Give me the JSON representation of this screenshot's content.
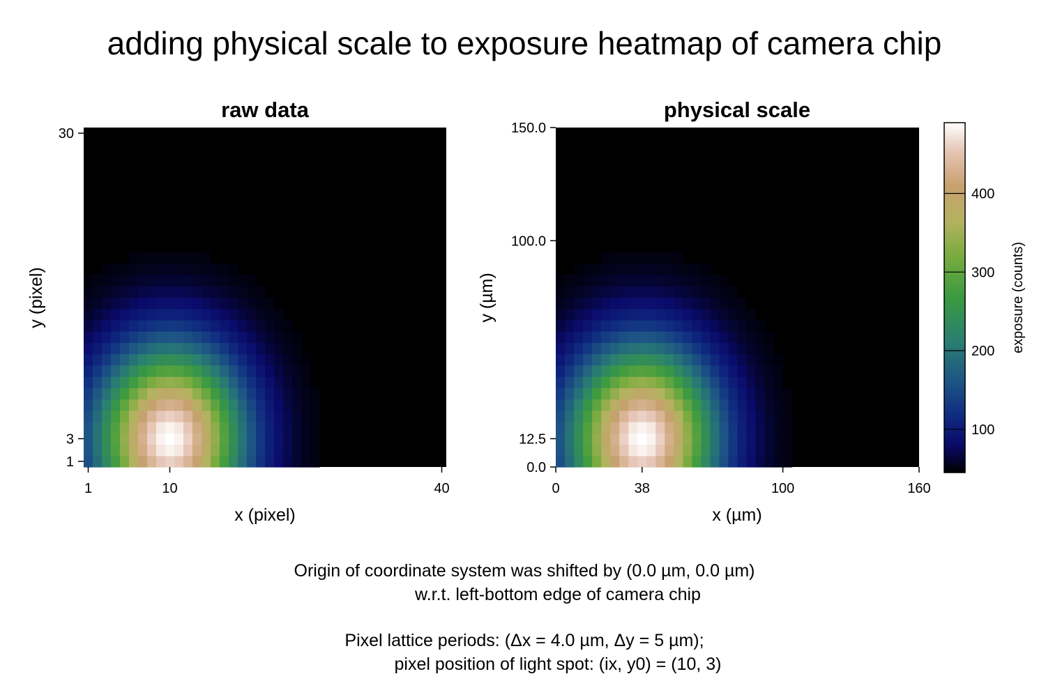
{
  "chart_data": {
    "type": "heatmap",
    "title": "adding physical scale to exposure heatmap of camera chip",
    "colormap": "gist_earth",
    "colorbar": {
      "label": "exposure (counts)",
      "range": [
        45,
        490
      ],
      "ticks": [
        "100",
        "200",
        "300",
        "400"
      ],
      "tick_values": [
        100,
        200,
        300,
        400
      ]
    },
    "exposure_model": {
      "description": "Gaussian light spot on 40 x 30 pixel chip",
      "peak_counts": 490,
      "background_counts": 45,
      "peak_pixel": [
        10,
        3
      ],
      "sigma_pixels": 5.5,
      "grid_size": [
        40,
        30
      ]
    },
    "panels": [
      {
        "id": "raw",
        "subtitle": "raw data",
        "xlabel": "x (pixel)",
        "ylabel": "y (pixel)",
        "xlim": [
          0.5,
          40.5
        ],
        "ylim": [
          0.5,
          30.5
        ],
        "xticks": [
          1,
          10,
          40
        ],
        "xtick_labels": [
          "1",
          "10",
          "40"
        ],
        "yticks": [
          1,
          3,
          30
        ],
        "ytick_labels": [
          "1",
          "3",
          "30"
        ],
        "cell_dx": 1,
        "cell_dy": 1
      },
      {
        "id": "physical",
        "subtitle": "physical scale",
        "xlabel": "x (µm)",
        "ylabel": "y (µm)",
        "xlim": [
          0,
          160
        ],
        "ylim": [
          0,
          150
        ],
        "xticks": [
          0,
          38,
          100,
          160
        ],
        "xtick_labels": [
          "0",
          "38",
          "100",
          "160"
        ],
        "yticks": [
          0,
          12.5,
          100,
          150
        ],
        "ytick_labels": [
          "0.0",
          "12.5",
          "100.0",
          "150.0"
        ],
        "cell_dx": 4.0,
        "cell_dy": 5
      }
    ],
    "notes": [
      "Origin of coordinate system was shifted by (0.0 µm, 0.0 µm)",
      "w.r.t. left-bottom edge of camera chip",
      "Pixel lattice periods: (Δx = 4.0 µm, Δy = 5 µm);",
      "pixel position of light spot: (ix, y0) = (10, 3)"
    ]
  }
}
